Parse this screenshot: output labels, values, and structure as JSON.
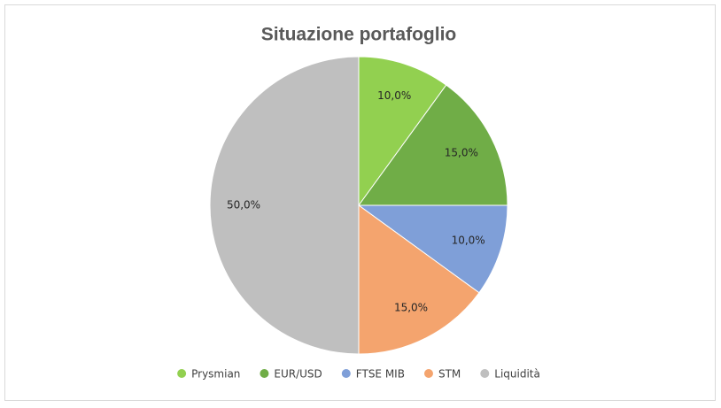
{
  "chart_data": {
    "type": "pie",
    "title": "Situazione portafoglio",
    "categories": [
      "Prysmian",
      "EUR/USD",
      "FTSE MIB",
      "STM",
      "Liquidità"
    ],
    "values": [
      10,
      15,
      10,
      15,
      50
    ],
    "value_labels": [
      "10,0%",
      "15,0%",
      "10,0%",
      "15,0%",
      "50,0%"
    ],
    "colors": [
      "#92d050",
      "#70ad47",
      "#7f9fd8",
      "#f4a46e",
      "#bfbfbf"
    ],
    "legend": "bottom"
  }
}
